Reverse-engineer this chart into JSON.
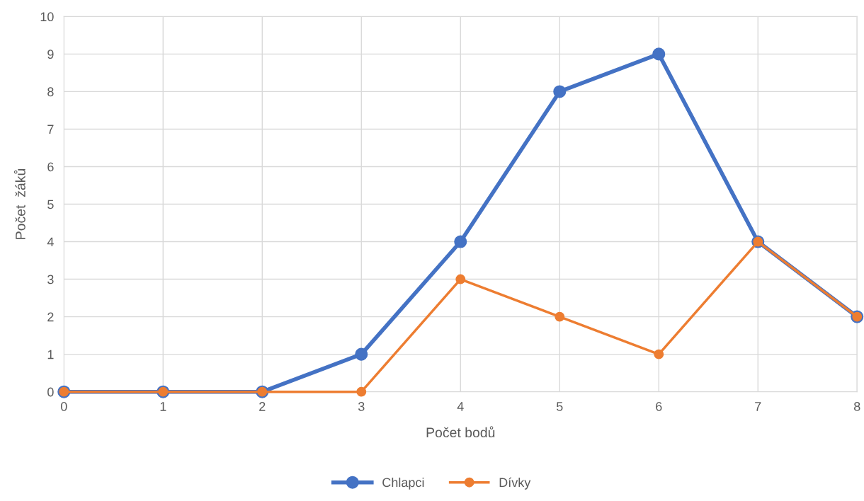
{
  "chart_data": {
    "type": "line",
    "xlabel": "Počet bodů",
    "ylabel": "Počet  žáků",
    "x": [
      0,
      1,
      2,
      3,
      4,
      5,
      6,
      7,
      8
    ],
    "series": [
      {
        "name": "Chlapci",
        "color": "#4472c4",
        "values": [
          0,
          0,
          0,
          1,
          4,
          8,
          9,
          4,
          2
        ]
      },
      {
        "name": "Dívky",
        "color": "#ed7d31",
        "values": [
          0,
          0,
          0,
          0,
          3,
          2,
          1,
          4,
          2
        ]
      }
    ],
    "xlim": [
      0,
      8
    ],
    "xticks": [
      0,
      1,
      2,
      3,
      4,
      5,
      6,
      7,
      8
    ],
    "ylim": [
      0,
      10
    ],
    "yticks": [
      0,
      1,
      2,
      3,
      4,
      5,
      6,
      7,
      8,
      9,
      10
    ],
    "grid": true,
    "legend": "bottom",
    "marker": "circle",
    "line_style": "solid"
  }
}
